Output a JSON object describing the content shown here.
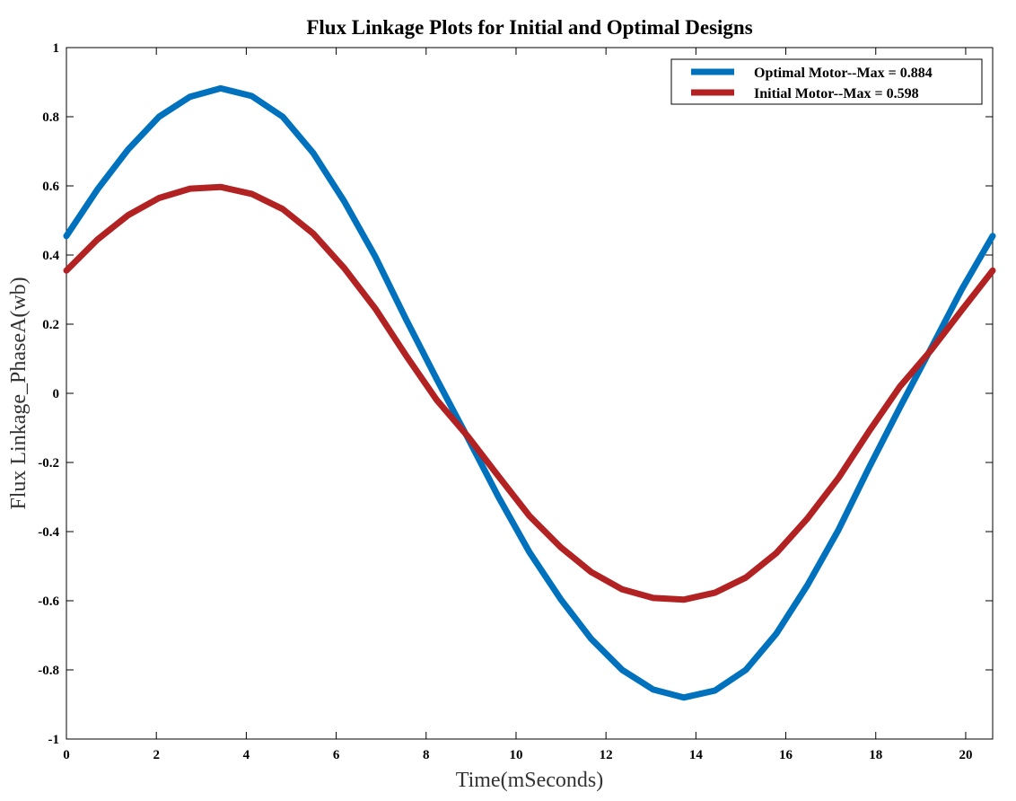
{
  "chart_data": {
    "type": "line",
    "title": "Flux Linkage Plots for Initial and Optimal Designs",
    "xlabel": "Time(mSeconds)",
    "ylabel": "Flux Linkage_PhaseA(wb)",
    "xlim": [
      0,
      20.6
    ],
    "ylim": [
      -1,
      1
    ],
    "xticks": [
      0,
      2,
      4,
      6,
      8,
      10,
      12,
      14,
      16,
      18,
      20
    ],
    "yticks": [
      -1,
      -0.8,
      -0.6,
      -0.4,
      -0.2,
      0,
      0.2,
      0.4,
      0.6,
      0.8,
      1
    ],
    "grid": false,
    "legend_position": "top-right",
    "x": [
      0,
      0.69,
      1.37,
      2.06,
      2.75,
      3.43,
      4.12,
      4.81,
      5.49,
      6.18,
      6.87,
      7.55,
      8.24,
      8.93,
      9.61,
      10.3,
      10.99,
      11.67,
      12.36,
      13.05,
      13.73,
      14.42,
      15.11,
      15.79,
      16.48,
      17.17,
      17.85,
      18.54,
      19.23,
      19.91,
      20.6
    ],
    "series": [
      {
        "name": "Optimal Motor--Max = 0.884",
        "color": "#0072bd",
        "values": [
          0.455,
          0.59,
          0.705,
          0.8,
          0.858,
          0.882,
          0.86,
          0.8,
          0.695,
          0.555,
          0.395,
          0.215,
          0.04,
          -0.13,
          -0.3,
          -0.46,
          -0.595,
          -0.71,
          -0.8,
          -0.857,
          -0.88,
          -0.86,
          -0.8,
          -0.695,
          -0.555,
          -0.395,
          -0.215,
          -0.04,
          0.13,
          0.3,
          0.455
        ]
      },
      {
        "name": "Initial Motor--Max = 0.598",
        "color": "#b22222",
        "values": [
          0.355,
          0.445,
          0.515,
          0.565,
          0.592,
          0.597,
          0.577,
          0.533,
          0.462,
          0.362,
          0.245,
          0.11,
          -0.02,
          -0.125,
          -0.24,
          -0.355,
          -0.445,
          -0.517,
          -0.567,
          -0.592,
          -0.597,
          -0.577,
          -0.533,
          -0.462,
          -0.362,
          -0.245,
          -0.11,
          0.02,
          0.125,
          0.24,
          0.355
        ]
      }
    ]
  }
}
